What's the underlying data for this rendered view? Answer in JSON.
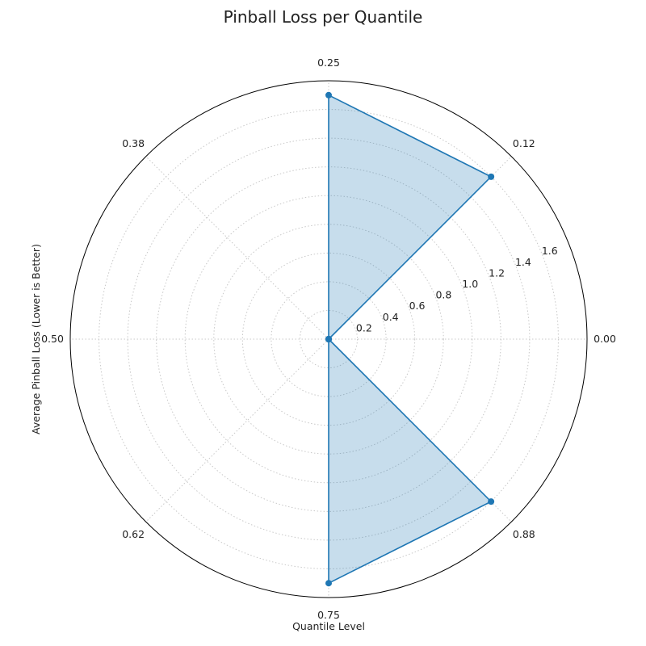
{
  "chart_data": {
    "type": "radar",
    "title": "Pinball Loss per Quantile",
    "xlabel": "Quantile Level",
    "ylabel": "Average Pinball Loss (Lower is Better)",
    "angular_ticks": [
      "0.00",
      "0.12",
      "0.25",
      "0.38",
      "0.50",
      "0.62",
      "0.75",
      "0.88"
    ],
    "radial_ticks": [
      "0.2",
      "0.4",
      "0.6",
      "0.8",
      "1.0",
      "1.2",
      "1.4",
      "1.6"
    ],
    "rlim": [
      0,
      1.8
    ],
    "grid": true,
    "grid_style": "dotted",
    "series": [
      {
        "color": "#1f77b4",
        "fill_color": "#1f77b4",
        "fill_opacity": 0.25,
        "points": [
          {
            "quantile": "0.00",
            "value": 0.0
          },
          {
            "quantile": "0.12",
            "value": 1.6
          },
          {
            "quantile": "0.25",
            "value": 1.7
          },
          {
            "quantile": "0.38",
            "value": 0.0
          },
          {
            "quantile": "0.50",
            "value": 0.0
          },
          {
            "quantile": "0.62",
            "value": 0.0
          },
          {
            "quantile": "0.75",
            "value": 1.7
          },
          {
            "quantile": "0.88",
            "value": 1.6
          }
        ]
      }
    ]
  }
}
